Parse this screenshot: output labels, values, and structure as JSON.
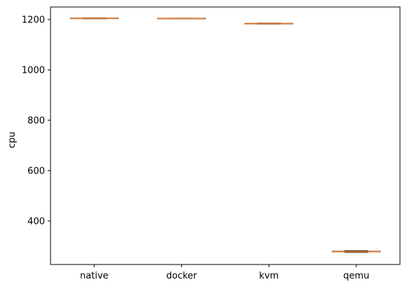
{
  "chart_data": {
    "type": "box",
    "title": "",
    "xlabel": "",
    "ylabel": "cpu",
    "categories": [
      "native",
      "docker",
      "kvm",
      "qemu"
    ],
    "boxes": [
      {
        "category": "native",
        "min": 1203,
        "q1": 1204,
        "median": 1205,
        "q3": 1206,
        "max": 1207
      },
      {
        "category": "docker",
        "min": 1203,
        "q1": 1204,
        "median": 1204.5,
        "q3": 1205,
        "max": 1206
      },
      {
        "category": "kvm",
        "min": 1182,
        "q1": 1183,
        "median": 1184,
        "q3": 1185,
        "max": 1186
      },
      {
        "category": "qemu",
        "min": 275,
        "q1": 277,
        "median": 278,
        "q3": 280,
        "max": 282
      }
    ],
    "ylim": [
      227,
      1250
    ],
    "yticks": [
      400,
      600,
      800,
      1000,
      1200
    ],
    "grid": false,
    "colors": {
      "box": "#000000",
      "median": "#e0823a",
      "axis": "#000000"
    }
  }
}
